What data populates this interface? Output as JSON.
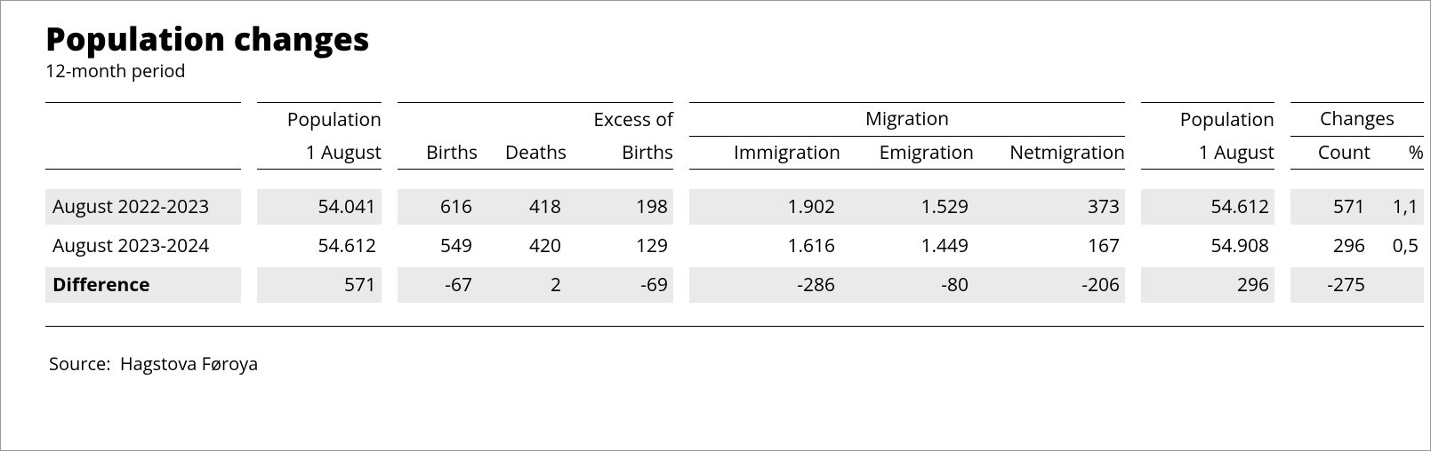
{
  "title": "Population changes",
  "subtitle": "12-month period",
  "source_label": "Source:",
  "source_value": "Hagstova Føroya",
  "colors": {
    "border": "#9a9a9a",
    "rule": "#000000",
    "shade": "#eaeaea",
    "text": "#000000",
    "background": "#ffffff"
  },
  "typography": {
    "title_fontsize_pt": 27,
    "title_weight": 800,
    "body_fontsize_pt": 16,
    "font_family": "Open Sans / Segoe UI / Arial"
  },
  "table": {
    "type": "table",
    "header_groups": {
      "migration": "Migration",
      "changes": "Changes"
    },
    "columns": [
      {
        "key": "label",
        "line1": "",
        "line2": "",
        "align": "left"
      },
      {
        "key": "pop1",
        "line1": "Population",
        "line2": "1 August",
        "align": "right"
      },
      {
        "key": "births",
        "line1": "",
        "line2": "Births",
        "align": "right"
      },
      {
        "key": "deaths",
        "line1": "",
        "line2": "Deaths",
        "align": "right"
      },
      {
        "key": "excess",
        "line1": "Excess of",
        "line2": "Births",
        "align": "right"
      },
      {
        "key": "immigration",
        "line1": "",
        "line2": "Immigration",
        "align": "right",
        "group": "migration"
      },
      {
        "key": "emigration",
        "line1": "",
        "line2": "Emigration",
        "align": "right",
        "group": "migration"
      },
      {
        "key": "netmigration",
        "line1": "",
        "line2": "Netmigration",
        "align": "right",
        "group": "migration"
      },
      {
        "key": "pop2",
        "line1": "Population",
        "line2": "1 August",
        "align": "right"
      },
      {
        "key": "count",
        "line1": "",
        "line2": "Count",
        "align": "right",
        "group": "changes"
      },
      {
        "key": "pct",
        "line1": "",
        "line2": "%",
        "align": "right",
        "group": "changes"
      }
    ],
    "rows": [
      {
        "shade": true,
        "bold": false,
        "label": "August 2022-2023",
        "pop1": "54.041",
        "births": "616",
        "deaths": "418",
        "excess": "198",
        "immigration": "1.902",
        "emigration": "1.529",
        "netmigration": "373",
        "pop2": "54.612",
        "count": "571",
        "pct": "1,1"
      },
      {
        "shade": false,
        "bold": false,
        "label": "August 2023-2024",
        "pop1": "54.612",
        "births": "549",
        "deaths": "420",
        "excess": "129",
        "immigration": "1.616",
        "emigration": "1.449",
        "netmigration": "167",
        "pop2": "54.908",
        "count": "296",
        "pct": "0,5"
      },
      {
        "shade": true,
        "bold": true,
        "label": "Difference",
        "pop1": "571",
        "births": "-67",
        "deaths": "2",
        "excess": "-69",
        "immigration": "-286",
        "emigration": "-80",
        "netmigration": "-206",
        "pop2": "296",
        "count": "-275",
        "pct": ""
      }
    ]
  }
}
